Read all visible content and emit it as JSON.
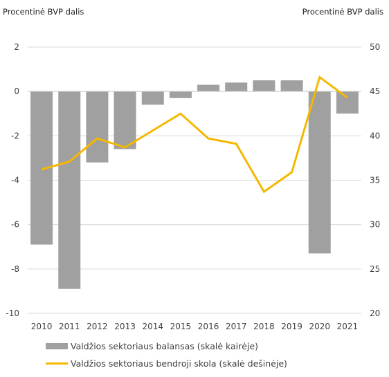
{
  "chart_data": {
    "type": "bar+line",
    "left_axis_label": "Procentinė BVP dalis",
    "right_axis_label": "Procentinė BVP dalis",
    "categories": [
      "2010",
      "2011",
      "2012",
      "2013",
      "2014",
      "2015",
      "2016",
      "2017",
      "2018",
      "2019",
      "2020",
      "2021"
    ],
    "left_ylim": [
      -10,
      2
    ],
    "left_ticks": [
      2,
      0,
      -2,
      -4,
      -6,
      -8,
      -10
    ],
    "right_ylim": [
      20,
      50
    ],
    "right_ticks": [
      50,
      45,
      40,
      35,
      30,
      25,
      20
    ],
    "series": [
      {
        "name": "Valdžios sektoriaus balansas (skalė kairėje)",
        "type": "bar",
        "axis": "left",
        "color": "#a0a0a0",
        "values": [
          -6.9,
          -8.9,
          -3.2,
          -2.6,
          -0.6,
          -0.3,
          0.3,
          0.4,
          0.5,
          0.5,
          -7.3,
          -1.0
        ]
      },
      {
        "name": "Valdžios sektoriaus bendroji skola (skalė dešinėje)",
        "type": "line",
        "axis": "right",
        "color": "#f5b800",
        "values": [
          36.2,
          37.1,
          39.7,
          38.7,
          40.6,
          42.5,
          39.7,
          39.1,
          33.7,
          35.9,
          46.6,
          44.3
        ]
      }
    ],
    "grid": true,
    "legend_position": "bottom"
  }
}
